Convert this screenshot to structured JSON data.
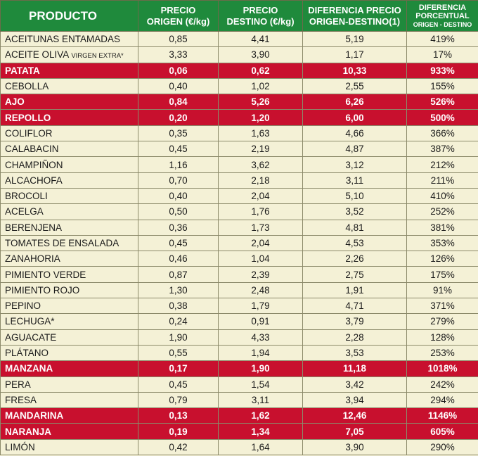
{
  "headers": {
    "producto": "PRODUCTO",
    "origen_l1": "PRECIO",
    "origen_l2": "ORIGEN (€/kg)",
    "destino_l1": "PRECIO",
    "destino_l2": "DESTINO (€/kg)",
    "diferencia_l1": "DIFERENCIA PRECIO",
    "diferencia_l2": "ORIGEN-DESTINO(1)",
    "porcentual_l1": "DIFERENCIA",
    "porcentual_l2": "PORCENTUAL",
    "porcentual_l3": "ORIGEN - DESTINO"
  },
  "colors": {
    "header_bg": "#1f8a3c",
    "row_bg": "#f4f1d6",
    "highlight_bg": "#c8102e"
  },
  "rows": [
    {
      "producto": "ACEITUNAS ENTAMADAS",
      "origen": "0,85",
      "destino": "4,41",
      "diferencia": "5,19",
      "porcentaje": "419%",
      "highlight": false
    },
    {
      "producto": "ACEITE OLIVA",
      "suffix": "VIRGEN EXTRA*",
      "origen": "3,33",
      "destino": "3,90",
      "diferencia": "1,17",
      "porcentaje": "17%",
      "highlight": false
    },
    {
      "producto": "PATATA",
      "origen": "0,06",
      "destino": "0,62",
      "diferencia": "10,33",
      "porcentaje": "933%",
      "highlight": true
    },
    {
      "producto": "CEBOLLA",
      "origen": "0,40",
      "destino": "1,02",
      "diferencia": "2,55",
      "porcentaje": "155%",
      "highlight": false
    },
    {
      "producto": "AJO",
      "origen": "0,84",
      "destino": "5,26",
      "diferencia": "6,26",
      "porcentaje": "526%",
      "highlight": true
    },
    {
      "producto": "REPOLLO",
      "origen": "0,20",
      "destino": "1,20",
      "diferencia": "6,00",
      "porcentaje": "500%",
      "highlight": true
    },
    {
      "producto": "COLIFLOR",
      "origen": "0,35",
      "destino": "1,63",
      "diferencia": "4,66",
      "porcentaje": "366%",
      "highlight": false
    },
    {
      "producto": "CALABACIN",
      "origen": "0,45",
      "destino": "2,19",
      "diferencia": "4,87",
      "porcentaje": "387%",
      "highlight": false
    },
    {
      "producto": "CHAMPIÑON",
      "origen": "1,16",
      "destino": "3,62",
      "diferencia": "3,12",
      "porcentaje": "212%",
      "highlight": false
    },
    {
      "producto": "ALCACHOFA",
      "origen": "0,70",
      "destino": "2,18",
      "diferencia": "3,11",
      "porcentaje": "211%",
      "highlight": false
    },
    {
      "producto": "BROCOLI",
      "origen": "0,40",
      "destino": "2,04",
      "diferencia": "5,10",
      "porcentaje": "410%",
      "highlight": false
    },
    {
      "producto": "ACELGA",
      "origen": "0,50",
      "destino": "1,76",
      "diferencia": "3,52",
      "porcentaje": "252%",
      "highlight": false
    },
    {
      "producto": "BERENJENA",
      "origen": "0,36",
      "destino": "1,73",
      "diferencia": "4,81",
      "porcentaje": "381%",
      "highlight": false
    },
    {
      "producto": "TOMATES DE ENSALADA",
      "origen": "0,45",
      "destino": "2,04",
      "diferencia": "4,53",
      "porcentaje": "353%",
      "highlight": false
    },
    {
      "producto": "ZANAHORIA",
      "origen": "0,46",
      "destino": "1,04",
      "diferencia": "2,26",
      "porcentaje": "126%",
      "highlight": false
    },
    {
      "producto": "PIMIENTO VERDE",
      "origen": "0,87",
      "destino": "2,39",
      "diferencia": "2,75",
      "porcentaje": "175%",
      "highlight": false
    },
    {
      "producto": "PIMIENTO ROJO",
      "origen": "1,30",
      "destino": "2,48",
      "diferencia": "1,91",
      "porcentaje": "91%",
      "highlight": false
    },
    {
      "producto": "PEPINO",
      "origen": "0,38",
      "destino": "1,79",
      "diferencia": "4,71",
      "porcentaje": "371%",
      "highlight": false
    },
    {
      "producto": "LECHUGA*",
      "origen": "0,24",
      "destino": "0,91",
      "diferencia": "3,79",
      "porcentaje": "279%",
      "highlight": false
    },
    {
      "producto": "AGUACATE",
      "origen": "1,90",
      "destino": "4,33",
      "diferencia": "2,28",
      "porcentaje": "128%",
      "highlight": false
    },
    {
      "producto": "PLÁTANO",
      "origen": "0,55",
      "destino": "1,94",
      "diferencia": "3,53",
      "porcentaje": "253%",
      "highlight": false
    },
    {
      "producto": "MANZANA",
      "origen": "0,17",
      "destino": "1,90",
      "diferencia": "11,18",
      "porcentaje": "1018%",
      "highlight": true
    },
    {
      "producto": "PERA",
      "origen": "0,45",
      "destino": "1,54",
      "diferencia": "3,42",
      "porcentaje": "242%",
      "highlight": false
    },
    {
      "producto": "FRESA",
      "origen": "0,79",
      "destino": "3,11",
      "diferencia": "3,94",
      "porcentaje": "294%",
      "highlight": false
    },
    {
      "producto": "MANDARINA",
      "origen": "0,13",
      "destino": "1,62",
      "diferencia": "12,46",
      "porcentaje": "1146%",
      "highlight": true
    },
    {
      "producto": "NARANJA",
      "origen": "0,19",
      "destino": "1,34",
      "diferencia": "7,05",
      "porcentaje": "605%",
      "highlight": true
    },
    {
      "producto": "LIMÓN",
      "origen": "0,42",
      "destino": "1,64",
      "diferencia": "3,90",
      "porcentaje": "290%",
      "highlight": false
    }
  ]
}
